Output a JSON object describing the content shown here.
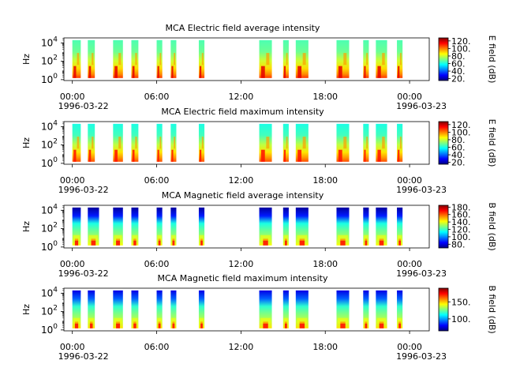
{
  "chart_data": [
    {
      "type": "heatmap",
      "title": "MCA  Electric field average intensity",
      "ylabel": "Hz",
      "y_scale": "log",
      "y_ticks": [
        {
          "exp": "0",
          "value": 1
        },
        {
          "exp": "2",
          "value": 100
        },
        {
          "exp": "4",
          "value": 10000
        }
      ],
      "x_ticks": [
        "00:00",
        "06:00",
        "12:00",
        "18:00",
        "00:00"
      ],
      "x_dates": [
        "1996-03-22",
        "1996-03-23"
      ],
      "colorbar_label": "E field (dB)",
      "colorbar_range": [
        15,
        128
      ],
      "colorbar_ticks": [
        "20.",
        "40.",
        "60.",
        "80.",
        "100.",
        "120."
      ],
      "colorscale": "jet",
      "data_intervals_hours": [
        [
          0.0,
          0.6
        ],
        [
          1.1,
          1.6
        ],
        [
          2.9,
          3.6
        ],
        [
          4.2,
          4.7
        ],
        [
          6.0,
          6.4
        ],
        [
          7.0,
          7.4
        ],
        [
          9.0,
          9.4
        ],
        [
          13.3,
          14.2
        ],
        [
          15.0,
          15.4
        ],
        [
          15.9,
          16.8
        ],
        [
          18.8,
          19.7
        ],
        [
          20.7,
          21.1
        ],
        [
          21.6,
          22.4
        ],
        [
          23.1,
          23.5
        ]
      ],
      "x_range_hours": [
        -0.6,
        25.4
      ],
      "data_ylim": [
        1.5,
        20000
      ]
    },
    {
      "type": "heatmap",
      "title": "MCA  Electric field maximum intensity",
      "ylabel": "Hz",
      "y_scale": "log",
      "y_ticks": [
        {
          "exp": "0",
          "value": 1
        },
        {
          "exp": "2",
          "value": 100
        },
        {
          "exp": "4",
          "value": 10000
        }
      ],
      "x_ticks": [
        "00:00",
        "06:00",
        "12:00",
        "18:00",
        "00:00"
      ],
      "x_dates": [
        "1996-03-22",
        "1996-03-23"
      ],
      "colorbar_label": "E field (dB)",
      "colorbar_range": [
        15,
        128
      ],
      "colorbar_ticks": [
        "20.",
        "40.",
        "60.",
        "80.",
        "100.",
        "120."
      ],
      "colorscale": "jet",
      "data_intervals_hours": [
        [
          0.0,
          0.6
        ],
        [
          1.1,
          1.6
        ],
        [
          2.9,
          3.6
        ],
        [
          4.2,
          4.7
        ],
        [
          6.0,
          6.4
        ],
        [
          7.0,
          7.4
        ],
        [
          9.0,
          9.4
        ],
        [
          13.3,
          14.2
        ],
        [
          15.0,
          15.4
        ],
        [
          15.9,
          16.8
        ],
        [
          18.8,
          19.7
        ],
        [
          20.7,
          21.1
        ],
        [
          21.6,
          22.4
        ],
        [
          23.1,
          23.5
        ]
      ],
      "x_range_hours": [
        -0.6,
        25.4
      ],
      "data_ylim": [
        1.5,
        20000
      ]
    },
    {
      "type": "heatmap",
      "title": "MCA  Magnetic field average intensity",
      "ylabel": "Hz",
      "y_scale": "log",
      "y_ticks": [
        {
          "exp": "0",
          "value": 1
        },
        {
          "exp": "2",
          "value": 100
        },
        {
          "exp": "4",
          "value": 10000
        }
      ],
      "x_ticks": [
        "00:00",
        "06:00",
        "12:00",
        "18:00",
        "00:00"
      ],
      "x_dates": [
        "1996-03-22",
        "1996-03-23"
      ],
      "colorbar_label": "B field (dB)",
      "colorbar_range": [
        70,
        185
      ],
      "colorbar_ticks": [
        "80.",
        "100.",
        "120.",
        "140.",
        "160.",
        "180."
      ],
      "colorscale": "jet",
      "data_intervals_hours": [
        [
          0.0,
          0.6
        ],
        [
          1.1,
          1.9
        ],
        [
          2.9,
          3.6
        ],
        [
          4.2,
          4.7
        ],
        [
          6.0,
          6.4
        ],
        [
          7.0,
          7.4
        ],
        [
          9.0,
          9.4
        ],
        [
          13.3,
          14.2
        ],
        [
          15.0,
          15.4
        ],
        [
          15.9,
          16.8
        ],
        [
          18.8,
          19.7
        ],
        [
          20.7,
          21.1
        ],
        [
          21.6,
          22.4
        ],
        [
          23.1,
          23.5
        ]
      ],
      "x_range_hours": [
        -0.6,
        25.4
      ],
      "data_ylim": [
        1.5,
        20000
      ]
    },
    {
      "type": "heatmap",
      "title": "MCA  Magnetic field maximum intensity",
      "ylabel": "Hz",
      "y_scale": "log",
      "y_ticks": [
        {
          "exp": "0",
          "value": 1
        },
        {
          "exp": "2",
          "value": 100
        },
        {
          "exp": "4",
          "value": 10000
        }
      ],
      "x_ticks": [
        "00:00",
        "06:00",
        "12:00",
        "18:00",
        "00:00"
      ],
      "x_dates": [
        "1996-03-22",
        "1996-03-23"
      ],
      "colorbar_label": "B field (dB)",
      "colorbar_range": [
        65,
        190
      ],
      "colorbar_ticks": [
        "100.",
        "150."
      ],
      "colorscale": "jet",
      "data_intervals_hours": [
        [
          0.0,
          0.6
        ],
        [
          1.1,
          1.6
        ],
        [
          2.9,
          3.6
        ],
        [
          4.2,
          4.7
        ],
        [
          6.0,
          6.4
        ],
        [
          7.0,
          7.4
        ],
        [
          9.0,
          9.4
        ],
        [
          13.3,
          14.2
        ],
        [
          15.0,
          15.4
        ],
        [
          15.9,
          16.8
        ],
        [
          18.8,
          19.7
        ],
        [
          20.7,
          21.1
        ],
        [
          21.6,
          22.4
        ],
        [
          23.1,
          23.5
        ]
      ],
      "x_range_hours": [
        -0.6,
        25.4
      ],
      "data_ylim": [
        1.5,
        20000
      ]
    }
  ]
}
